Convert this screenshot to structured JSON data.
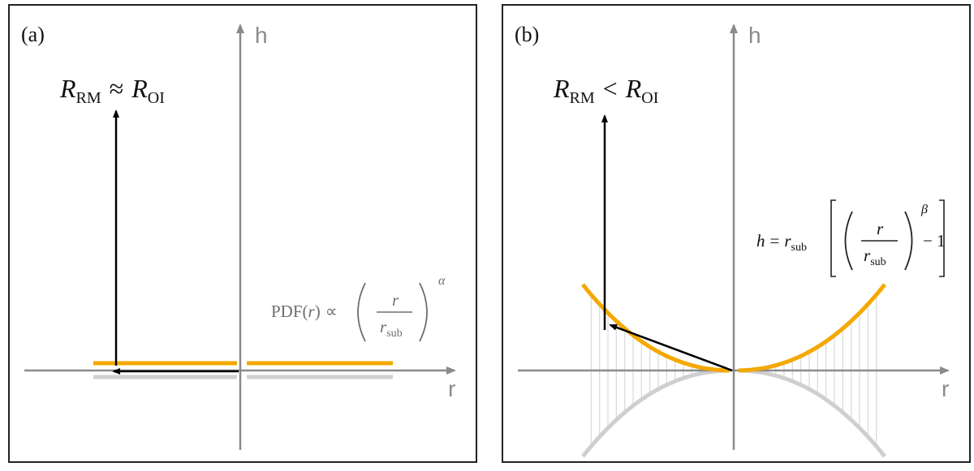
{
  "panels": [
    {
      "label": "(a)",
      "x_axis_label": "r",
      "y_axis_label": "h",
      "headline": {
        "R1": "R",
        "sub1": "RM",
        "op": "≈",
        "R2": "R",
        "sub2": "OI"
      },
      "formula": {
        "lhs": "PDF(",
        "var": "r",
        "close": ")",
        "prop": "∝",
        "num": "r",
        "den": "r",
        "den_sub": "sub",
        "exp": "α"
      }
    },
    {
      "label": "(b)",
      "x_axis_label": "r",
      "y_axis_label": "h",
      "headline": {
        "R1": "R",
        "sub1": "RM",
        "op": "<",
        "R2": "R",
        "sub2": "OI"
      },
      "formula": {
        "lhs": "h",
        "eq": "=",
        "r": "r",
        "r_sub": "sub",
        "num": "r",
        "den": "r",
        "den_sub": "sub",
        "exp": "β",
        "minus": "− 1"
      }
    }
  ],
  "colors": {
    "disk": "#f5a800",
    "shadow": "#cfcfcf",
    "axis": "#8a8a8a",
    "arrow": "#000000",
    "frame": "#222222"
  }
}
